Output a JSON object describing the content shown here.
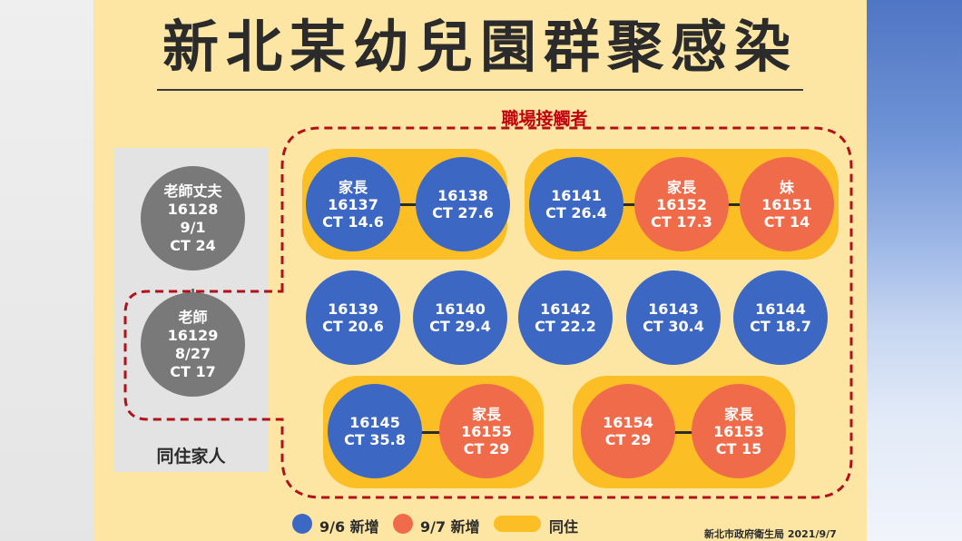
{
  "title": "新北某幼兒園群聚感染",
  "workplace_label": "職場接觸者",
  "family_label": "同住家人",
  "colors": {
    "new_9_6": "#3c67c3",
    "new_9_7": "#ef6b4a",
    "cohabit": "#fbbf25",
    "family_case": "#797979",
    "contact_outline": "#b3111a"
  },
  "family_cases": {
    "husband": {
      "role": "老師丈夫",
      "id": "16128",
      "date": "9/1",
      "ct": "CT 24"
    },
    "teacher": {
      "role": "老師",
      "id": "16129",
      "date": "8/27",
      "ct": "CT 17"
    }
  },
  "cases": {
    "c16137": {
      "role": "家長",
      "id": "16137",
      "ct": "CT 14.6"
    },
    "c16138": {
      "id": "16138",
      "ct": "CT 27.6"
    },
    "c16141": {
      "id": "16141",
      "ct": "CT 26.4"
    },
    "c16152": {
      "role": "家長",
      "id": "16152",
      "ct": "CT 17.3"
    },
    "c16151": {
      "role": "妹",
      "id": "16151",
      "ct": "CT 14"
    },
    "c16139": {
      "id": "16139",
      "ct": "CT 20.6"
    },
    "c16140": {
      "id": "16140",
      "ct": "CT 29.4"
    },
    "c16142": {
      "id": "16142",
      "ct": "CT 22.2"
    },
    "c16143": {
      "id": "16143",
      "ct": "CT 30.4"
    },
    "c16144": {
      "id": "16144",
      "ct": "CT 18.7"
    },
    "c16145": {
      "id": "16145",
      "ct": "CT 35.8"
    },
    "c16155": {
      "role": "家長",
      "id": "16155",
      "ct": "CT 29"
    },
    "c16154": {
      "id": "16154",
      "ct": "CT 29"
    },
    "c16153": {
      "role": "家長",
      "id": "16153",
      "ct": "CT 15"
    }
  },
  "legend": {
    "new_9_6": "9/6 新增",
    "new_9_7": "9/7 新增",
    "cohabit": "同住"
  },
  "source": "新北市政府衛生局 2021/9/7"
}
